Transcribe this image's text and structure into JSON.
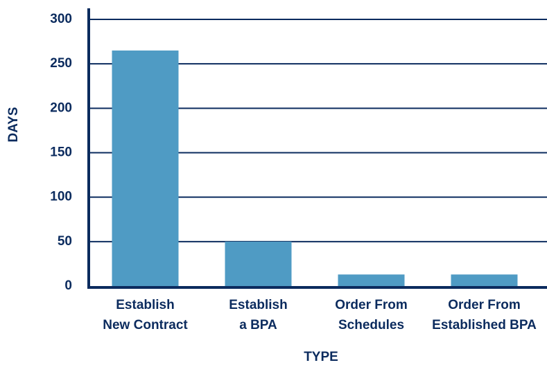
{
  "chart_data": {
    "type": "bar",
    "xlabel": "TYPE",
    "ylabel": "DAYS",
    "categories": [
      [
        "Establish",
        "New Contract"
      ],
      [
        "Establish",
        "a BPA"
      ],
      [
        "Order From",
        "Schedules"
      ],
      [
        "Order From",
        "Established BPA"
      ]
    ],
    "values": [
      265,
      50,
      13,
      13
    ],
    "color": "#4f9bc4",
    "ylim": [
      0,
      300
    ],
    "yticks": [
      0,
      50,
      100,
      150,
      200,
      250,
      300
    ],
    "grid": true
  }
}
